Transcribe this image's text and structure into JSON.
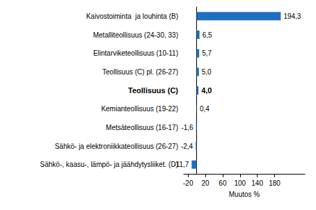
{
  "chart_data": {
    "type": "bar",
    "orientation": "horizontal",
    "categories": [
      "Kaivostoiminta  ja louhinta (B)",
      "Metalliteollisuus (24-30, 33)",
      "Elintarviketeollisuus (10-11)",
      "Teollisuus (C) pl. (26-27)",
      "Teollisuus (C)",
      "Kemianteollisuus (19-22)",
      "Metsäteollisuus (16-17)",
      "Sähkö- ja elektroniikkateollisuus (26-27)",
      "Sähkö-, kaasu-, lämpö- ja jäähdytysliiket. (D)"
    ],
    "values": [
      194.3,
      6.5,
      5.7,
      5.0,
      4.0,
      0.4,
      -1.6,
      -2.4,
      -11.7
    ],
    "value_labels": [
      "194,3",
      "6,5",
      "5,7",
      "5,0",
      "4,0",
      "0,4",
      "-1,6",
      "-2,4",
      "-11,7"
    ],
    "color": "#1f6fc0",
    "xlabel": "Muutos %",
    "xlim": [
      -30,
      250
    ],
    "xticks": [
      -20,
      20,
      60,
      100,
      140,
      180
    ],
    "grid": false,
    "data_labels": true
  }
}
